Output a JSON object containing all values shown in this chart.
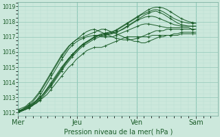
{
  "title": "Pression niveau de la mer( hPa )",
  "ylim": [
    1011.8,
    1019.3
  ],
  "yticks": [
    1012,
    1013,
    1014,
    1015,
    1016,
    1017,
    1018,
    1019
  ],
  "xtick_labels": [
    "Mer",
    "Jeu",
    "Ven",
    "Sam"
  ],
  "xtick_positions": [
    0,
    48,
    96,
    144
  ],
  "xlim": [
    0,
    162
  ],
  "bg_color": "#cce8dc",
  "grid_color_minor": "#b8ddd0",
  "grid_color_major": "#90c8b8",
  "line_color": "#1a5c28",
  "marker": "+",
  "figsize": [
    3.2,
    2.0
  ],
  "dpi": 100,
  "series": [
    [
      1012.1,
      1012.15,
      1012.2,
      1012.3,
      1012.5,
      1012.6,
      1012.8,
      1013.0,
      1013.2,
      1013.5,
      1013.8,
      1014.1,
      1014.4,
      1014.7,
      1015.0,
      1015.2,
      1015.5,
      1015.7,
      1015.9,
      1016.1,
      1016.2,
      1016.3,
      1016.3,
      1016.3,
      1016.4,
      1016.5,
      1016.6,
      1016.7,
      1016.8,
      1016.9,
      1017.0,
      1017.0,
      1017.0,
      1017.0,
      1017.0,
      1017.0,
      1017.0,
      1017.1,
      1017.1,
      1017.1,
      1017.1,
      1017.1,
      1017.1,
      1017.1,
      1017.1,
      1017.2,
      1017.2,
      1017.2,
      1017.2,
      1017.2
    ],
    [
      1012.2,
      1012.3,
      1012.4,
      1012.6,
      1012.8,
      1013.1,
      1013.4,
      1013.8,
      1014.2,
      1014.6,
      1015.0,
      1015.4,
      1015.8,
      1016.1,
      1016.4,
      1016.6,
      1016.8,
      1016.9,
      1017.0,
      1017.1,
      1017.2,
      1017.3,
      1017.4,
      1017.5,
      1017.5,
      1017.4,
      1017.3,
      1017.2,
      1017.1,
      1017.0,
      1016.9,
      1016.8,
      1016.7,
      1016.7,
      1016.6,
      1016.6,
      1016.7,
      1016.8,
      1016.9,
      1017.0,
      1017.0,
      1017.1,
      1017.1,
      1017.2,
      1017.2,
      1017.3,
      1017.3,
      1017.3,
      1017.3,
      1017.3
    ],
    [
      1012.1,
      1012.2,
      1012.35,
      1012.5,
      1012.7,
      1013.0,
      1013.3,
      1013.7,
      1014.1,
      1014.5,
      1014.9,
      1015.3,
      1015.7,
      1016.0,
      1016.35,
      1016.6,
      1016.8,
      1017.0,
      1017.2,
      1017.35,
      1017.45,
      1017.5,
      1017.4,
      1017.3,
      1017.2,
      1017.1,
      1017.0,
      1016.9,
      1016.85,
      1016.8,
      1016.8,
      1016.8,
      1016.85,
      1016.9,
      1017.0,
      1017.1,
      1017.2,
      1017.3,
      1017.4,
      1017.4,
      1017.4,
      1017.5,
      1017.5,
      1017.5,
      1017.5,
      1017.5,
      1017.5,
      1017.5,
      1017.5,
      1017.5
    ],
    [
      1012.1,
      1012.2,
      1012.3,
      1012.45,
      1012.6,
      1012.8,
      1013.1,
      1013.5,
      1013.9,
      1014.3,
      1014.7,
      1015.1,
      1015.5,
      1015.85,
      1016.2,
      1016.45,
      1016.65,
      1016.8,
      1016.9,
      1017.0,
      1017.05,
      1017.1,
      1017.1,
      1017.0,
      1017.0,
      1017.0,
      1017.0,
      1017.1,
      1017.2,
      1017.3,
      1017.4,
      1017.5,
      1017.6,
      1017.7,
      1017.8,
      1017.85,
      1017.85,
      1017.8,
      1017.75,
      1017.7,
      1017.65,
      1017.6,
      1017.6,
      1017.6,
      1017.6,
      1017.6,
      1017.6,
      1017.6,
      1017.5,
      1017.5
    ],
    [
      1012.0,
      1012.1,
      1012.2,
      1012.35,
      1012.5,
      1012.7,
      1012.95,
      1013.25,
      1013.6,
      1013.95,
      1014.3,
      1014.65,
      1015.0,
      1015.3,
      1015.6,
      1015.85,
      1016.1,
      1016.3,
      1016.5,
      1016.65,
      1016.8,
      1016.95,
      1017.05,
      1017.1,
      1017.15,
      1017.2,
      1017.25,
      1017.3,
      1017.4,
      1017.5,
      1017.65,
      1017.8,
      1017.95,
      1018.1,
      1018.2,
      1018.3,
      1018.35,
      1018.35,
      1018.3,
      1018.2,
      1018.1,
      1018.0,
      1017.9,
      1017.8,
      1017.75,
      1017.7,
      1017.7,
      1017.7,
      1017.7,
      1017.7
    ],
    [
      1012.0,
      1012.1,
      1012.2,
      1012.3,
      1012.45,
      1012.65,
      1012.85,
      1013.1,
      1013.4,
      1013.7,
      1014.05,
      1014.4,
      1014.75,
      1015.1,
      1015.4,
      1015.7,
      1015.95,
      1016.2,
      1016.4,
      1016.55,
      1016.7,
      1016.85,
      1016.95,
      1017.05,
      1017.1,
      1017.15,
      1017.2,
      1017.3,
      1017.4,
      1017.55,
      1017.7,
      1017.85,
      1018.0,
      1018.15,
      1018.3,
      1018.45,
      1018.55,
      1018.65,
      1018.7,
      1018.6,
      1018.5,
      1018.35,
      1018.2,
      1018.05,
      1017.9,
      1017.8,
      1017.75,
      1017.7,
      1017.7,
      1017.7
    ],
    [
      1012.05,
      1012.15,
      1012.25,
      1012.4,
      1012.55,
      1012.75,
      1012.95,
      1013.2,
      1013.5,
      1013.8,
      1014.15,
      1014.5,
      1014.85,
      1015.2,
      1015.5,
      1015.8,
      1016.05,
      1016.3,
      1016.5,
      1016.65,
      1016.8,
      1016.95,
      1017.05,
      1017.15,
      1017.2,
      1017.25,
      1017.3,
      1017.4,
      1017.55,
      1017.7,
      1017.85,
      1018.0,
      1018.15,
      1018.3,
      1018.45,
      1018.55,
      1018.65,
      1018.75,
      1018.8,
      1018.75,
      1018.65,
      1018.5,
      1018.35,
      1018.2,
      1018.1,
      1018.0,
      1017.95,
      1017.9,
      1017.9,
      1017.9
    ],
    [
      1012.1,
      1012.2,
      1012.3,
      1012.45,
      1012.6,
      1012.8,
      1013.0,
      1013.25,
      1013.55,
      1013.85,
      1014.2,
      1014.55,
      1014.9,
      1015.25,
      1015.55,
      1015.85,
      1016.1,
      1016.35,
      1016.55,
      1016.7,
      1016.85,
      1017.0,
      1017.1,
      1017.2,
      1017.25,
      1017.3,
      1017.35,
      1017.45,
      1017.6,
      1017.75,
      1017.9,
      1018.05,
      1018.2,
      1018.35,
      1018.5,
      1018.65,
      1018.8,
      1018.9,
      1018.95,
      1018.95,
      1018.9,
      1018.8,
      1018.65,
      1018.5,
      1018.35,
      1018.2,
      1018.1,
      1018.0,
      1017.95,
      1017.9
    ]
  ]
}
